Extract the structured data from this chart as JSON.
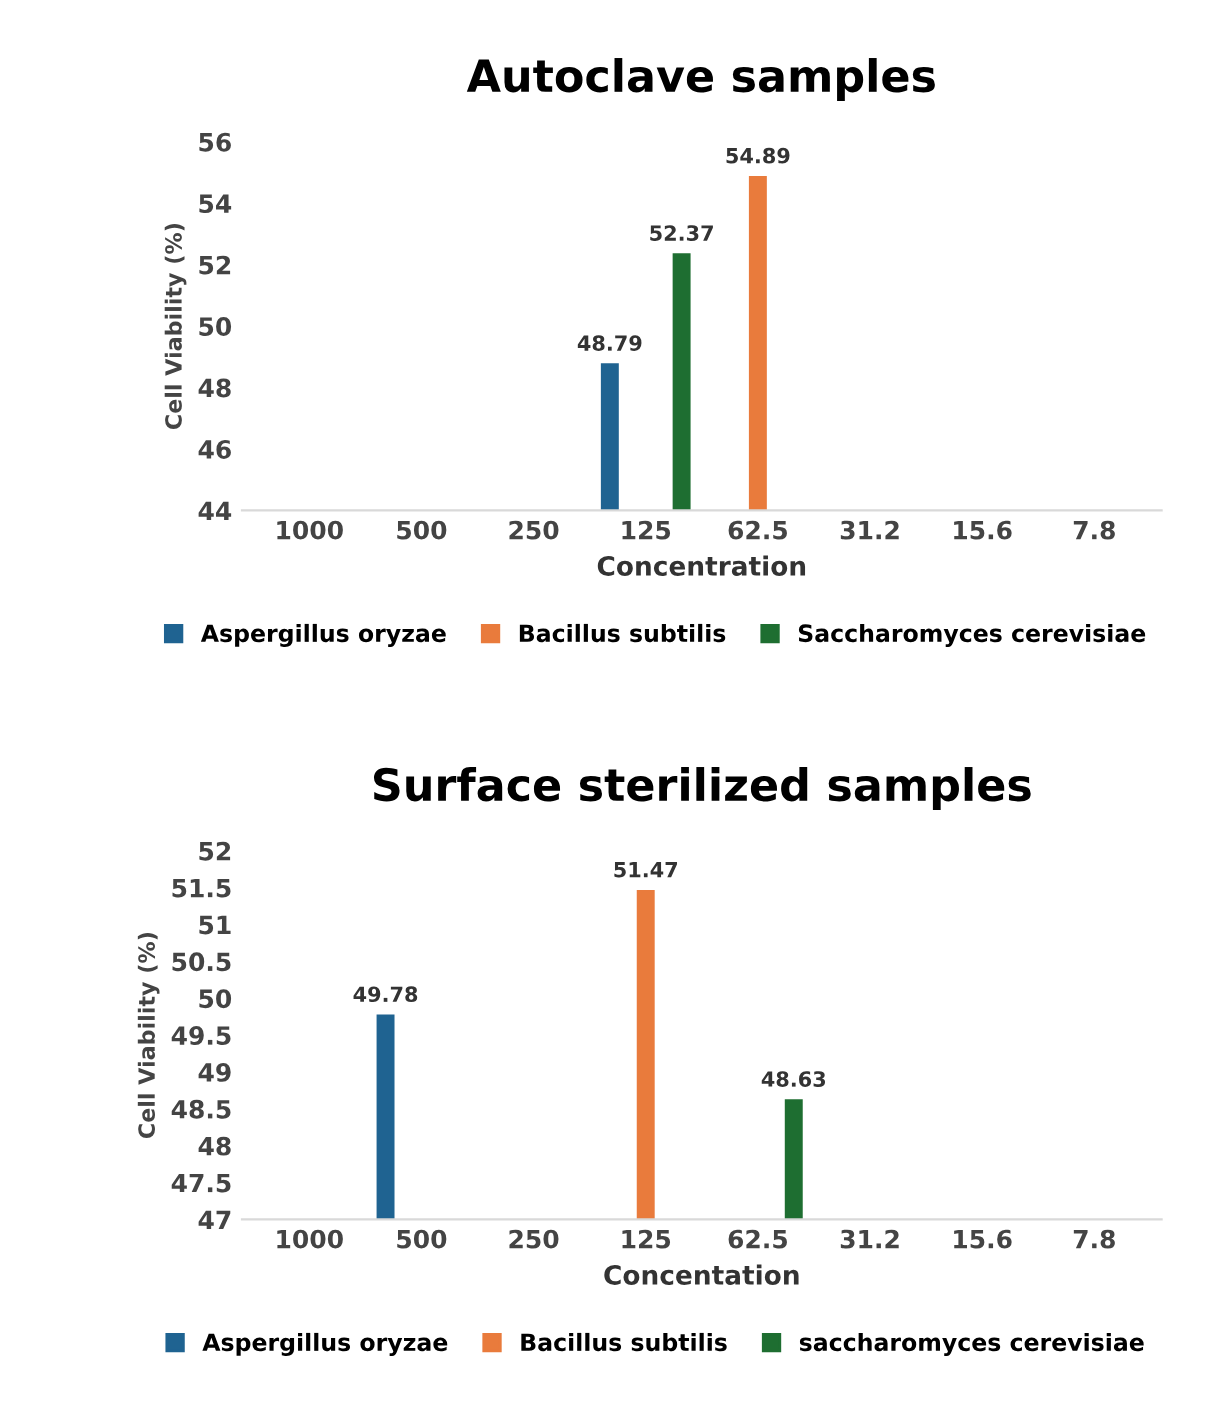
{
  "chart_data": [
    {
      "type": "bar",
      "title": "Autoclave samples",
      "xlabel": "Concentration",
      "ylabel": "Cell Viability (%)",
      "categories": [
        "1000",
        "500",
        "250",
        "125",
        "62.5",
        "31.2",
        "15.6",
        "7.8"
      ],
      "ylim": [
        44,
        56
      ],
      "yticks": [
        44,
        46,
        48,
        50,
        52,
        54,
        56
      ],
      "grid": false,
      "legend": "bottom",
      "data_labels": true,
      "series": [
        {
          "name": "Aspergillus oryzae",
          "color": "#1f6391",
          "values": [
            null,
            null,
            null,
            48.79,
            null,
            null,
            null,
            null
          ]
        },
        {
          "name": "Bacillus subtilis",
          "color": "#e97b3c",
          "values": [
            null,
            null,
            null,
            null,
            54.89,
            null,
            null,
            null
          ]
        },
        {
          "name": "Saccharomyces cerevisiae",
          "color": "#1e6e31",
          "values": [
            null,
            null,
            null,
            52.37,
            null,
            null,
            null,
            null
          ]
        }
      ]
    },
    {
      "type": "bar",
      "title": "Surface sterilized samples",
      "xlabel": "Concentation",
      "ylabel": "Cell Viability (%)",
      "categories": [
        "1000",
        "500",
        "250",
        "125",
        "62.5",
        "31.2",
        "15.6",
        "7.8"
      ],
      "ylim": [
        47,
        52
      ],
      "yticks": [
        47,
        47.5,
        48,
        48.5,
        49,
        49.5,
        50,
        50.5,
        51,
        51.5,
        52
      ],
      "grid": false,
      "legend": "bottom",
      "data_labels": true,
      "series": [
        {
          "name": "Aspergillus oryzae",
          "color": "#1f6391",
          "values": [
            null,
            49.78,
            null,
            null,
            null,
            null,
            null,
            null
          ]
        },
        {
          "name": "Bacillus subtilis",
          "color": "#e97b3c",
          "values": [
            null,
            null,
            null,
            51.47,
            null,
            null,
            null,
            null
          ]
        },
        {
          "name": "saccharomyces cerevisiae",
          "color": "#1e6e31",
          "values": [
            null,
            null,
            null,
            null,
            48.63,
            null,
            null,
            null
          ]
        }
      ]
    }
  ]
}
